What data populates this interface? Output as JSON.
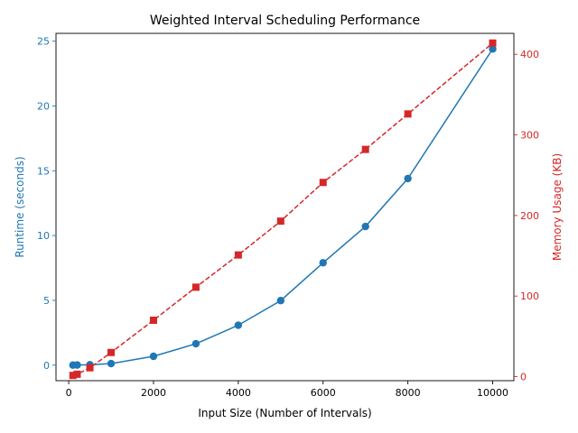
{
  "chart_data": {
    "type": "line",
    "title": "Weighted Interval Scheduling Performance",
    "xlabel": "Input Size (Number of Intervals)",
    "xlim": [
      -300,
      10500
    ],
    "xticks": [
      0,
      2000,
      4000,
      6000,
      8000,
      10000
    ],
    "x": [
      100,
      200,
      500,
      1000,
      2000,
      3000,
      4000,
      5000,
      6000,
      7000,
      8000,
      10000
    ],
    "y_left": {
      "label": "Runtime (seconds)",
      "color": "#1f77b4",
      "lim": [
        -1.2,
        25.6
      ],
      "ticks": [
        0,
        5,
        10,
        15,
        20,
        25
      ]
    },
    "y_right": {
      "label": "Memory Usage (KB)",
      "color": "#d62728",
      "lim": [
        -5,
        426
      ],
      "ticks": [
        0,
        100,
        200,
        300,
        400
      ]
    },
    "series": [
      {
        "axis": "left",
        "color": "#1f77b4",
        "style": "solid",
        "marker": "circle",
        "values": [
          0.003,
          0.01,
          0.03,
          0.12,
          0.68,
          1.65,
          3.08,
          4.98,
          7.9,
          10.7,
          14.4,
          24.4
        ]
      },
      {
        "axis": "right",
        "color": "#d62728",
        "style": "dashed",
        "marker": "square",
        "values": [
          1.5,
          3,
          11,
          30,
          70,
          111,
          151,
          193,
          241,
          282,
          326,
          414
        ]
      }
    ],
    "grid": false,
    "legend": "none"
  }
}
